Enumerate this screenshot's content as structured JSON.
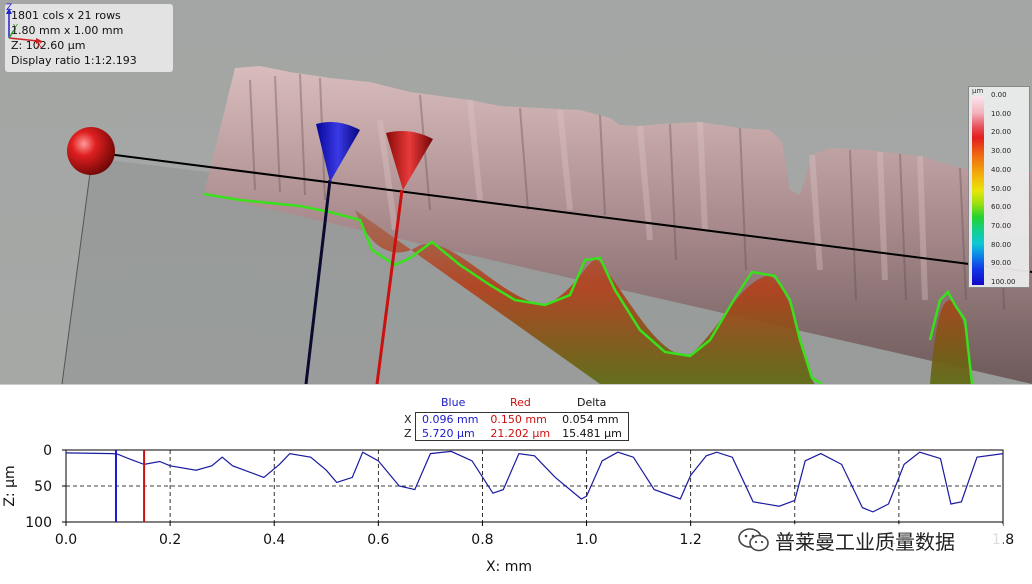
{
  "view3d": {
    "info": {
      "dims": "1801 cols x 21 rows",
      "size": "1.80 mm x 1.00 mm",
      "z": "Z: 102.60 µm",
      "ratio": "Display ratio 1:1:2.193"
    },
    "colorbar": {
      "unit": "µm",
      "ticks": [
        "0.00",
        "10.00",
        "20.00",
        "30.00",
        "40.00",
        "50.00",
        "60.00",
        "70.00",
        "80.00",
        "90.00",
        "100.00"
      ]
    },
    "axes": {
      "z": "Z",
      "y": "Y",
      "x": "X"
    },
    "colors": {
      "blue_cursor": "#1a1acc",
      "red_cursor": "#cc1010",
      "profile_line": "#39e01c",
      "sphere": "#d81818"
    }
  },
  "readout": {
    "col_blue": "Blue",
    "col_red": "Red",
    "col_delta": "Delta",
    "rows": [
      {
        "label": "X",
        "blue": "0.096 mm",
        "red": "0.150 mm",
        "delta": "0.054 mm"
      },
      {
        "label": "Z",
        "blue": "5.720 µm",
        "red": "21.202 µm",
        "delta": "15.481 µm"
      }
    ]
  },
  "chart_data": {
    "type": "line",
    "xlabel": "X: mm",
    "ylabel": "Z: µm",
    "xlim": [
      0.0,
      1.8
    ],
    "ylim": [
      100,
      0
    ],
    "xticks": [
      "0.0",
      "0.2",
      "0.4",
      "0.6",
      "0.8",
      "1.0",
      "1.2",
      "1.4",
      "1.6",
      "1.8"
    ],
    "yticks": [
      "0",
      "50",
      "100"
    ],
    "cursors": {
      "blue_x": 0.096,
      "red_x": 0.15
    },
    "series": [
      {
        "color": "#1a1aa0",
        "x": [
          0.0,
          0.09,
          0.1,
          0.12,
          0.15,
          0.18,
          0.2,
          0.25,
          0.28,
          0.3,
          0.32,
          0.38,
          0.41,
          0.43,
          0.47,
          0.5,
          0.52,
          0.55,
          0.57,
          0.6,
          0.64,
          0.67,
          0.7,
          0.74,
          0.78,
          0.82,
          0.84,
          0.87,
          0.9,
          0.94,
          0.99,
          1.0,
          1.03,
          1.06,
          1.09,
          1.13,
          1.18,
          1.2,
          1.23,
          1.25,
          1.28,
          1.32,
          1.37,
          1.4,
          1.42,
          1.45,
          1.49,
          1.53,
          1.55,
          1.58,
          1.61,
          1.64,
          1.68,
          1.7,
          1.72,
          1.75,
          1.8
        ],
        "y": [
          4,
          5,
          6,
          12,
          20,
          16,
          22,
          28,
          22,
          10,
          22,
          38,
          20,
          5,
          10,
          28,
          45,
          38,
          3,
          15,
          50,
          55,
          5,
          2,
          15,
          60,
          55,
          5,
          8,
          38,
          68,
          64,
          15,
          3,
          10,
          55,
          68,
          35,
          8,
          3,
          10,
          72,
          78,
          70,
          15,
          5,
          20,
          80,
          86,
          75,
          20,
          3,
          12,
          75,
          72,
          10,
          5
        ]
      }
    ]
  },
  "watermark": {
    "text": "普莱曼工业质量数据"
  }
}
